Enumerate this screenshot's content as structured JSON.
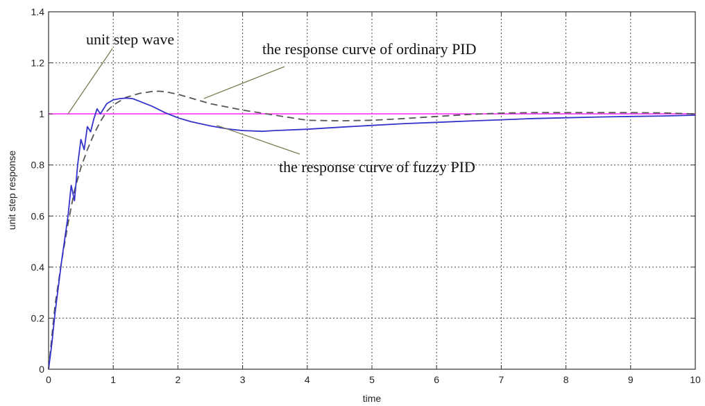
{
  "chart_data": {
    "type": "line",
    "title": "",
    "xlabel": "time",
    "ylabel": "unit step response",
    "xlim": [
      0,
      10
    ],
    "ylim": [
      0,
      1.4
    ],
    "grid": true,
    "x_ticks": [
      0,
      1,
      2,
      3,
      4,
      5,
      6,
      7,
      8,
      9,
      10
    ],
    "x_tick_labels": [
      "0",
      "1",
      "2",
      "3",
      "4",
      "5",
      "6",
      "7",
      "8",
      "9",
      "10"
    ],
    "y_ticks": [
      0,
      0.2,
      0.4,
      0.6,
      0.8,
      1,
      1.2,
      1.4
    ],
    "y_tick_labels": [
      "0",
      "0.2",
      "0.4",
      "0.6",
      "0.8",
      "1",
      "1.2",
      "1.4"
    ],
    "series": [
      {
        "key": "unit_step",
        "color": "#ff33ff",
        "style": "solid",
        "x": [
          0,
          10
        ],
        "y": [
          1.0,
          1.0
        ]
      },
      {
        "key": "ordinary_pid",
        "color": "#555555",
        "style": "dashed",
        "x": [
          0,
          0.1,
          0.2,
          0.3,
          0.4,
          0.5,
          0.6,
          0.7,
          0.8,
          0.9,
          1.0,
          1.2,
          1.4,
          1.6,
          1.7,
          1.8,
          2.0,
          2.2,
          2.5,
          3.0,
          3.5,
          4.0,
          4.5,
          5.0,
          5.5,
          6.0,
          6.5,
          7.0,
          7.5,
          8.0,
          8.5,
          9.0,
          9.5,
          10.0
        ],
        "y": [
          0,
          0.25,
          0.42,
          0.57,
          0.7,
          0.79,
          0.86,
          0.92,
          0.97,
          1.01,
          1.035,
          1.065,
          1.08,
          1.088,
          1.089,
          1.087,
          1.077,
          1.062,
          1.04,
          1.015,
          0.995,
          0.975,
          0.973,
          0.975,
          0.982,
          0.99,
          0.998,
          1.003,
          1.005,
          1.005,
          1.005,
          1.005,
          1.004,
          1.0
        ]
      },
      {
        "key": "fuzzy_pid",
        "color": "#3333cc",
        "style": "solid",
        "x": [
          0,
          0.05,
          0.1,
          0.2,
          0.3,
          0.35,
          0.4,
          0.45,
          0.5,
          0.55,
          0.6,
          0.65,
          0.7,
          0.75,
          0.8,
          0.9,
          1.0,
          1.1,
          1.2,
          1.3,
          1.4,
          1.6,
          1.8,
          2.0,
          2.2,
          2.5,
          2.8,
          3.0,
          3.3,
          3.5,
          4.0,
          4.5,
          5.0,
          5.5,
          6.0,
          6.5,
          7.0,
          7.5,
          8.0,
          8.5,
          9.0,
          9.5,
          10.0
        ],
        "y": [
          0,
          0.1,
          0.22,
          0.42,
          0.6,
          0.72,
          0.66,
          0.8,
          0.9,
          0.86,
          0.95,
          0.93,
          0.98,
          1.02,
          1.0,
          1.04,
          1.055,
          1.06,
          1.062,
          1.06,
          1.05,
          1.03,
          1.005,
          0.985,
          0.97,
          0.953,
          0.94,
          0.935,
          0.932,
          0.935,
          0.94,
          0.948,
          0.955,
          0.962,
          0.967,
          0.972,
          0.977,
          0.982,
          0.985,
          0.988,
          0.99,
          0.992,
          0.995
        ]
      }
    ],
    "annotations": [
      {
        "key": "unit_step",
        "text": "unit step wave",
        "arrow_to": [
          0.3,
          1.0
        ]
      },
      {
        "key": "ordinary_pid",
        "text": "the response curve of ordinary PID",
        "arrow_to": [
          2.4,
          1.06
        ]
      },
      {
        "key": "fuzzy_pid",
        "text": "the response curve of fuzzy PID",
        "arrow_to": [
          2.6,
          0.955
        ]
      }
    ]
  }
}
